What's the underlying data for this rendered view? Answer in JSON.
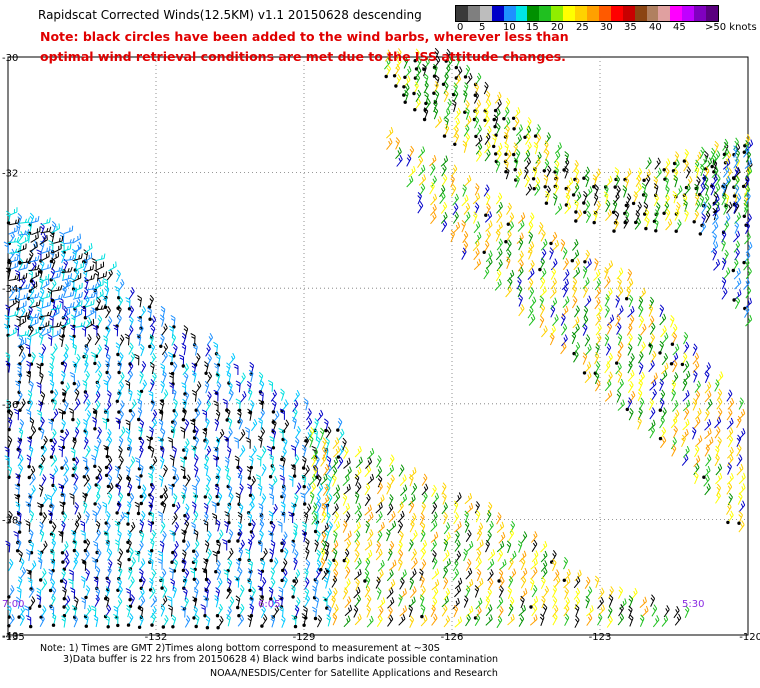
{
  "header": {
    "title": "Rapidscat Corrected Winds(12.5KM) v1.1 20150628 descending",
    "note_line_1": "Note: black circles have been added to the wind barbs, wherever less than",
    "note_line_2": "optimal wind retrieval conditions are met due to the ISS attitude changes."
  },
  "colorbar": {
    "colors": [
      "#3a3a3a",
      "#7f7f7f",
      "#bdbdbd",
      "#0000c8",
      "#1e90ff",
      "#00e5e5",
      "#009000",
      "#20c020",
      "#90ee00",
      "#ffff00",
      "#ffd200",
      "#ffa000",
      "#ff5a00",
      "#ff0000",
      "#c80000",
      "#8b4513",
      "#b08060",
      "#e0a0a0",
      "#ff00ff",
      "#c000ff",
      "#8000c0",
      "#5a007f"
    ],
    "labels": [
      "0",
      "5",
      "10",
      "15",
      "20",
      "25",
      "30",
      "35",
      "40",
      "45",
      ">50 knots"
    ]
  },
  "map": {
    "lat_labels": [
      "-30",
      "-32",
      "-34",
      "-36",
      "-38",
      "-40"
    ],
    "lon_labels": [
      "-135",
      "-132",
      "-129",
      "-126",
      "-123",
      "-120"
    ],
    "time_labels": [
      "7:00",
      "6:05",
      "5:30"
    ],
    "extent": {
      "lon": [
        -135,
        -120
      ],
      "lat": [
        -30,
        -40
      ]
    },
    "grid": true
  },
  "footer": {
    "line_1": "Note: 1) Times are GMT 2)Times along bottom correspond to measurement at ~30S",
    "line_2": "3)Data buffer is 22 hrs from 20150628 4) Black wind barbs indicate possible contamination",
    "line_3": "NOAA/NESDIS/Center for Satellite Applications and Research"
  }
}
